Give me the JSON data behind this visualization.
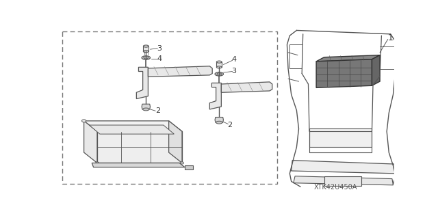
{
  "bg_color": "#ffffff",
  "line_color": "#555555",
  "dark_color": "#333333",
  "diagram_code": "XTK42U450A",
  "fig_width": 6.4,
  "fig_height": 3.19,
  "dpi": 100
}
